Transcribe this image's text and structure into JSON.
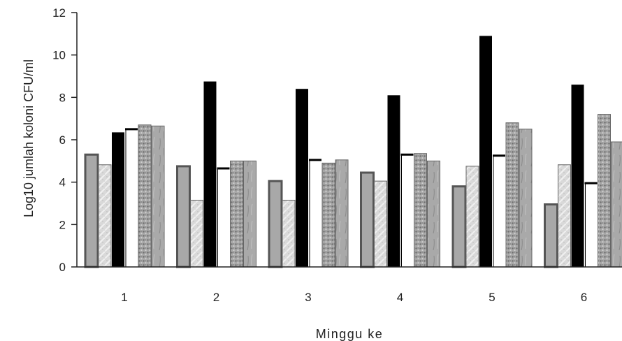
{
  "chart_data": {
    "type": "bar",
    "xlabel": "Minggu ke",
    "ylabel": "Log10 jumlah koloni CFU/ml",
    "categories": [
      "1",
      "2",
      "3",
      "4",
      "5",
      "6"
    ],
    "ylim": [
      0,
      12
    ],
    "yticks": [
      "0",
      "2",
      "4",
      "6",
      "8",
      "10",
      "12"
    ],
    "grid": false,
    "legend": "none",
    "series": [
      {
        "values": [
          5.3,
          4.75,
          4.05,
          4.45,
          3.8,
          2.95
        ],
        "color": "#a8a8a8",
        "pattern": "solid"
      },
      {
        "values": [
          4.82,
          3.15,
          3.15,
          4.05,
          4.75,
          4.82
        ],
        "color": "#d6d6d6",
        "pattern": "light-texture"
      },
      {
        "values": [
          6.35,
          8.75,
          8.4,
          8.1,
          10.9,
          8.6
        ],
        "color": "#000000",
        "pattern": "solid"
      },
      {
        "values": [
          6.5,
          4.65,
          5.05,
          5.3,
          5.25,
          3.95
        ],
        "color": "#ffffff",
        "pattern": "white-with-black-cap"
      },
      {
        "values": [
          6.7,
          5.0,
          4.9,
          5.35,
          6.8,
          7.2
        ],
        "color": "#9a9a9a",
        "pattern": "speckled-texture"
      },
      {
        "values": [
          6.65,
          5.0,
          5.05,
          5.0,
          6.5,
          5.9
        ],
        "color": "#a4a4a4",
        "pattern": "grass-texture"
      }
    ]
  }
}
